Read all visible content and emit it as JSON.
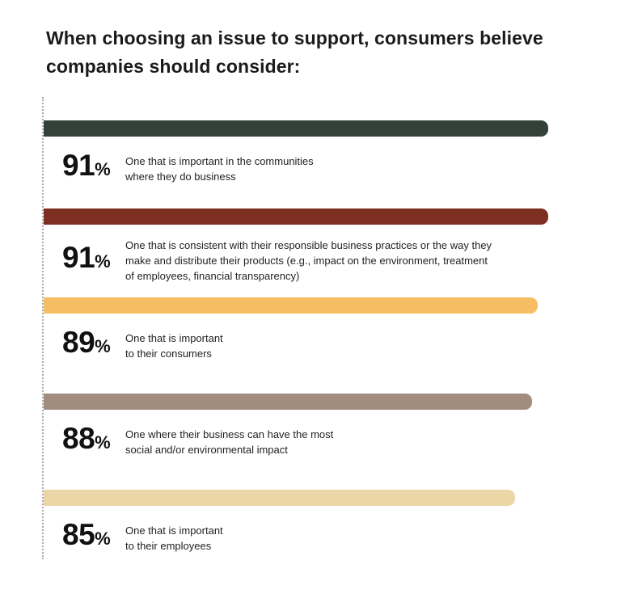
{
  "title_lines": [
    "When choosing an issue to support, consumers believe",
    "companies should consider:"
  ],
  "percent_sign": "%",
  "colors": {
    "axis_dotted_line": "#ababab",
    "text_dark": "#1b1b19"
  },
  "chart_data": {
    "type": "bar",
    "orientation": "horizontal",
    "title": "When choosing an issue to support, consumers believe companies should consider:",
    "xlim": [
      0,
      100
    ],
    "value_unit": "%",
    "grid": false,
    "legend": false,
    "categories": [
      "One that is important in the communities where they do business",
      "One that is consistent with their responsible business practices or the way they make and distribute their products (e.g., impact on the environment, treatment of employees, financial transparency)",
      "One that is important to their consumers",
      "One where their business can have the most social and/or environmental impact",
      "One that is important to their employees"
    ],
    "values": [
      91,
      91,
      89,
      88,
      85
    ],
    "items": [
      {
        "value": "91",
        "width_pct": 91,
        "color": "#334239",
        "desc_lines": [
          "One that is important in the communities",
          "where they do business"
        ]
      },
      {
        "value": "91",
        "width_pct": 91,
        "color": "#7D2F22",
        "desc_lines": [
          "One that is consistent with their responsible business practices or the way they",
          "make and distribute their products (e.g., impact on the environment, treatment",
          "of employees, financial transparency)"
        ]
      },
      {
        "value": "89",
        "width_pct": 89,
        "color": "#F6BE62",
        "desc_lines": [
          "One that is important",
          "to their consumers"
        ]
      },
      {
        "value": "88",
        "width_pct": 88,
        "color": "#A18C7E",
        "desc_lines": [
          "One where their business can have the most",
          "social and/or environmental impact"
        ]
      },
      {
        "value": "85",
        "width_pct": 85,
        "color": "#EBD6A8",
        "desc_lines": [
          "One that is important",
          "to their employees"
        ]
      }
    ]
  }
}
